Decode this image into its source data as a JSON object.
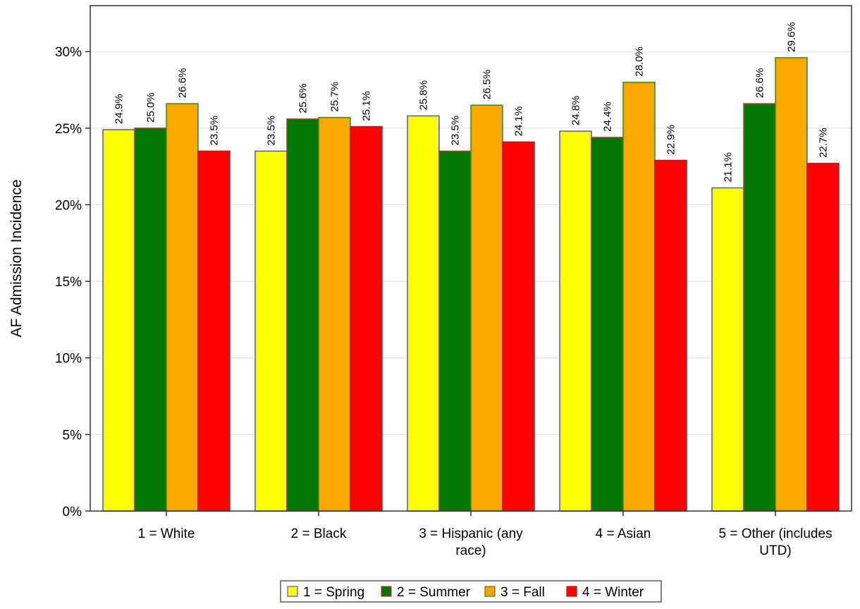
{
  "chart_data": {
    "type": "bar",
    "ylabel": "AF Admission Incidence",
    "ylim": [
      0,
      0.33
    ],
    "yticks": [
      0,
      0.05,
      0.1,
      0.15,
      0.2,
      0.25,
      0.3
    ],
    "ytick_labels": [
      "0%",
      "5%",
      "10%",
      "15%",
      "20%",
      "25%",
      "30%"
    ],
    "grid": "horizontal",
    "legend_position": "bottom-center",
    "categories": [
      [
        "1 = White"
      ],
      [
        "2 = Black"
      ],
      [
        "3 = Hispanic (any",
        "race)"
      ],
      [
        "4 = Asian"
      ],
      [
        "5 = Other (includes",
        "UTD)"
      ]
    ],
    "series": [
      {
        "name": "1 = Spring",
        "color": "#ffff00",
        "edge": "#5555cc",
        "values": [
          0.249,
          0.235,
          0.258,
          0.248,
          0.211
        ],
        "labels": [
          "24.9%",
          "23.5%",
          "25.8%",
          "24.8%",
          "21.1%"
        ]
      },
      {
        "name": "2 = Summer",
        "color": "#007700",
        "edge": "#cc3333",
        "values": [
          0.25,
          0.256,
          0.235,
          0.244,
          0.266
        ],
        "labels": [
          "25.0%",
          "25.6%",
          "23.5%",
          "24.4%",
          "26.6%"
        ]
      },
      {
        "name": "3 = Fall",
        "color": "#ffa500",
        "edge": "#338833",
        "values": [
          0.266,
          0.257,
          0.265,
          0.28,
          0.296
        ],
        "labels": [
          "26.6%",
          "25.7%",
          "26.5%",
          "28.0%",
          "29.6%"
        ]
      },
      {
        "name": "4 = Winter",
        "color": "#ff0000",
        "edge": "#aa2222",
        "values": [
          0.235,
          0.251,
          0.241,
          0.229,
          0.227
        ],
        "labels": [
          "23.5%",
          "25.1%",
          "24.1%",
          "22.9%",
          "22.7%"
        ]
      }
    ]
  }
}
